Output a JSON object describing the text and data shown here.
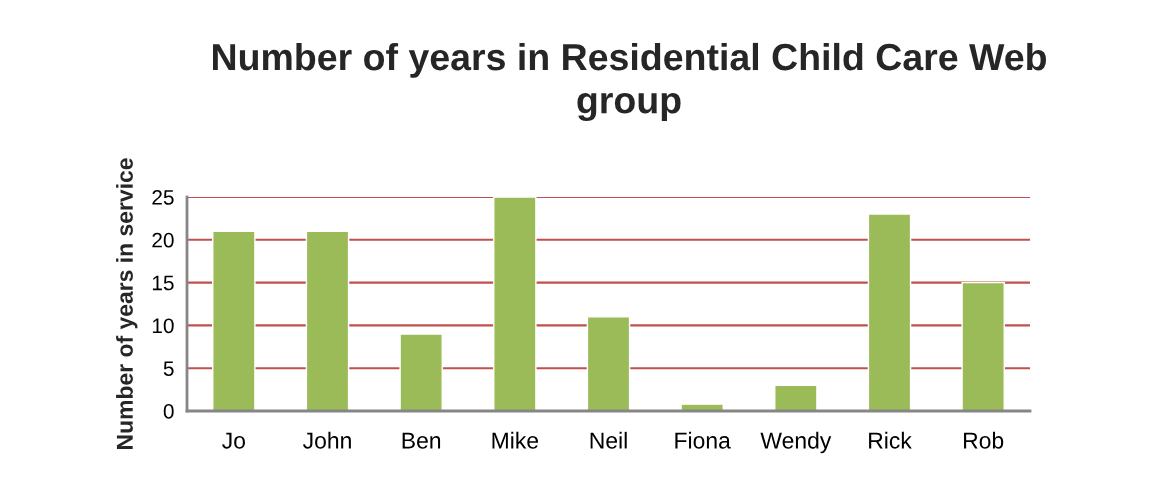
{
  "chart_data": {
    "type": "bar",
    "title": "Number of years in Residential Child Care Web group",
    "ylabel": "Number of years in service",
    "categories": [
      "Jo",
      "John",
      "Ben",
      "Mike",
      "Neil",
      "Fiona",
      "Wendy",
      "Rick",
      "Rob"
    ],
    "values": [
      21,
      21,
      9,
      25,
      11,
      0.8,
      3,
      23,
      15
    ],
    "color": "#9bbb59",
    "ylim": [
      0,
      25
    ],
    "yticks": [
      0,
      5,
      10,
      15,
      20,
      25
    ],
    "grid": "y"
  }
}
